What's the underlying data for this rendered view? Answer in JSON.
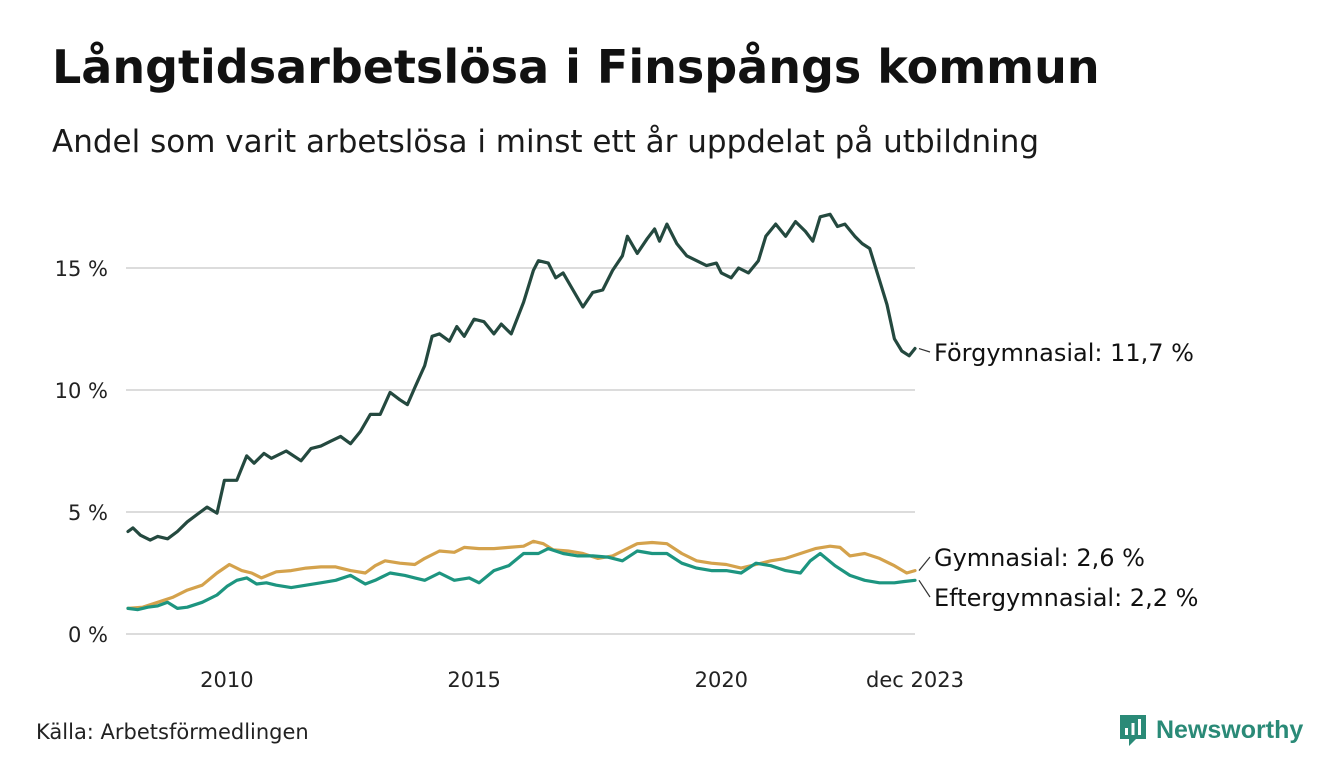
{
  "chart_data": {
    "type": "line",
    "title": "Långtidsarbetslösa i Finspångs kommun",
    "subtitle": "Andel som varit arbetslösa i minst ett år uppdelat på utbildning",
    "xlabel": "",
    "ylabel": "",
    "ylim": [
      0,
      17.5
    ],
    "y_ticks": [
      0,
      5,
      10,
      15
    ],
    "y_tick_labels": [
      "0 %",
      "5 %",
      "10 %",
      "15 %"
    ],
    "x_ticks": [
      2010,
      2015,
      2020,
      2023.917
    ],
    "x_tick_labels": [
      "2010",
      "2015",
      "2020",
      "dec 2023"
    ],
    "xlim": [
      2008.0,
      2023.917
    ],
    "grid": true,
    "colors": {
      "forgymnasial": "#24493f",
      "gymnasial": "#d4a24c",
      "eftergymnasial": "#1d9580",
      "grid": "#dcdcdc"
    },
    "series": [
      {
        "key": "forgymnasial",
        "name": "Förgymnasial",
        "label": "Förgymnasial: 11,7 %",
        "points": [
          [
            2008.0,
            4.2
          ],
          [
            2008.1,
            4.35
          ],
          [
            2008.25,
            4.05
          ],
          [
            2008.45,
            3.85
          ],
          [
            2008.6,
            4.0
          ],
          [
            2008.8,
            3.9
          ],
          [
            2009.0,
            4.2
          ],
          [
            2009.2,
            4.6
          ],
          [
            2009.4,
            4.9
          ],
          [
            2009.6,
            5.2
          ],
          [
            2009.8,
            4.95
          ],
          [
            2009.95,
            6.3
          ],
          [
            2010.2,
            6.3
          ],
          [
            2010.4,
            7.3
          ],
          [
            2010.55,
            7.0
          ],
          [
            2010.75,
            7.4
          ],
          [
            2010.9,
            7.2
          ],
          [
            2011.2,
            7.5
          ],
          [
            2011.5,
            7.1
          ],
          [
            2011.7,
            7.6
          ],
          [
            2011.9,
            7.7
          ],
          [
            2012.1,
            7.9
          ],
          [
            2012.3,
            8.1
          ],
          [
            2012.5,
            7.8
          ],
          [
            2012.7,
            8.3
          ],
          [
            2012.9,
            9.0
          ],
          [
            2013.1,
            9.0
          ],
          [
            2013.3,
            9.9
          ],
          [
            2013.5,
            9.6
          ],
          [
            2013.65,
            9.4
          ],
          [
            2013.8,
            10.1
          ],
          [
            2014.0,
            11.0
          ],
          [
            2014.15,
            12.2
          ],
          [
            2014.3,
            12.3
          ],
          [
            2014.5,
            12.0
          ],
          [
            2014.65,
            12.6
          ],
          [
            2014.8,
            12.2
          ],
          [
            2015.0,
            12.9
          ],
          [
            2015.2,
            12.8
          ],
          [
            2015.4,
            12.3
          ],
          [
            2015.55,
            12.7
          ],
          [
            2015.75,
            12.3
          ],
          [
            2016.0,
            13.6
          ],
          [
            2016.2,
            14.9
          ],
          [
            2016.3,
            15.3
          ],
          [
            2016.5,
            15.2
          ],
          [
            2016.65,
            14.6
          ],
          [
            2016.8,
            14.8
          ],
          [
            2017.0,
            14.1
          ],
          [
            2017.2,
            13.4
          ],
          [
            2017.4,
            14.0
          ],
          [
            2017.6,
            14.1
          ],
          [
            2017.8,
            14.9
          ],
          [
            2018.0,
            15.5
          ],
          [
            2018.1,
            16.3
          ],
          [
            2018.3,
            15.6
          ],
          [
            2018.5,
            16.2
          ],
          [
            2018.65,
            16.6
          ],
          [
            2018.75,
            16.1
          ],
          [
            2018.9,
            16.8
          ],
          [
            2019.1,
            16.0
          ],
          [
            2019.3,
            15.5
          ],
          [
            2019.5,
            15.3
          ],
          [
            2019.7,
            15.1
          ],
          [
            2019.9,
            15.2
          ],
          [
            2020.0,
            14.8
          ],
          [
            2020.2,
            14.6
          ],
          [
            2020.35,
            15.0
          ],
          [
            2020.55,
            14.8
          ],
          [
            2020.75,
            15.3
          ],
          [
            2020.9,
            16.3
          ],
          [
            2021.1,
            16.8
          ],
          [
            2021.3,
            16.3
          ],
          [
            2021.5,
            16.9
          ],
          [
            2021.7,
            16.5
          ],
          [
            2021.85,
            16.1
          ],
          [
            2022.0,
            17.1
          ],
          [
            2022.2,
            17.2
          ],
          [
            2022.35,
            16.7
          ],
          [
            2022.5,
            16.8
          ],
          [
            2022.7,
            16.3
          ],
          [
            2022.85,
            16.0
          ],
          [
            2023.0,
            15.8
          ],
          [
            2023.2,
            14.5
          ],
          [
            2023.35,
            13.5
          ],
          [
            2023.5,
            12.1
          ],
          [
            2023.65,
            11.6
          ],
          [
            2023.8,
            11.4
          ],
          [
            2023.917,
            11.7
          ]
        ]
      },
      {
        "key": "gymnasial",
        "name": "Gymnasial",
        "label": "Gymnasial:  2,6 %",
        "points": [
          [
            2008.0,
            1.05
          ],
          [
            2008.3,
            1.1
          ],
          [
            2008.6,
            1.3
          ],
          [
            2008.9,
            1.5
          ],
          [
            2009.2,
            1.8
          ],
          [
            2009.5,
            2.0
          ],
          [
            2009.8,
            2.5
          ],
          [
            2010.05,
            2.85
          ],
          [
            2010.3,
            2.6
          ],
          [
            2010.5,
            2.5
          ],
          [
            2010.7,
            2.3
          ],
          [
            2011.0,
            2.55
          ],
          [
            2011.3,
            2.6
          ],
          [
            2011.6,
            2.7
          ],
          [
            2011.9,
            2.75
          ],
          [
            2012.2,
            2.75
          ],
          [
            2012.5,
            2.6
          ],
          [
            2012.8,
            2.5
          ],
          [
            2013.0,
            2.8
          ],
          [
            2013.2,
            3.0
          ],
          [
            2013.5,
            2.9
          ],
          [
            2013.8,
            2.85
          ],
          [
            2014.0,
            3.1
          ],
          [
            2014.3,
            3.4
          ],
          [
            2014.6,
            3.35
          ],
          [
            2014.8,
            3.55
          ],
          [
            2015.1,
            3.5
          ],
          [
            2015.4,
            3.5
          ],
          [
            2015.7,
            3.55
          ],
          [
            2016.0,
            3.6
          ],
          [
            2016.2,
            3.8
          ],
          [
            2016.4,
            3.7
          ],
          [
            2016.6,
            3.45
          ],
          [
            2016.9,
            3.4
          ],
          [
            2017.2,
            3.3
          ],
          [
            2017.5,
            3.1
          ],
          [
            2017.8,
            3.2
          ],
          [
            2018.0,
            3.4
          ],
          [
            2018.3,
            3.7
          ],
          [
            2018.6,
            3.75
          ],
          [
            2018.9,
            3.7
          ],
          [
            2019.2,
            3.3
          ],
          [
            2019.5,
            3.0
          ],
          [
            2019.8,
            2.9
          ],
          [
            2020.1,
            2.85
          ],
          [
            2020.4,
            2.7
          ],
          [
            2020.7,
            2.85
          ],
          [
            2021.0,
            3.0
          ],
          [
            2021.3,
            3.1
          ],
          [
            2021.6,
            3.3
          ],
          [
            2021.9,
            3.5
          ],
          [
            2022.2,
            3.6
          ],
          [
            2022.4,
            3.55
          ],
          [
            2022.6,
            3.2
          ],
          [
            2022.9,
            3.3
          ],
          [
            2023.2,
            3.1
          ],
          [
            2023.5,
            2.8
          ],
          [
            2023.75,
            2.5
          ],
          [
            2023.917,
            2.6
          ]
        ]
      },
      {
        "key": "eftergymnasial",
        "name": "Eftergymnasial",
        "label": "Eftergymnasial:  2,2 %",
        "points": [
          [
            2008.0,
            1.05
          ],
          [
            2008.2,
            1.0
          ],
          [
            2008.4,
            1.1
          ],
          [
            2008.6,
            1.15
          ],
          [
            2008.8,
            1.3
          ],
          [
            2009.0,
            1.05
          ],
          [
            2009.2,
            1.1
          ],
          [
            2009.5,
            1.3
          ],
          [
            2009.8,
            1.6
          ],
          [
            2010.0,
            1.95
          ],
          [
            2010.2,
            2.2
          ],
          [
            2010.4,
            2.3
          ],
          [
            2010.6,
            2.05
          ],
          [
            2010.8,
            2.1
          ],
          [
            2011.0,
            2.0
          ],
          [
            2011.3,
            1.9
          ],
          [
            2011.6,
            2.0
          ],
          [
            2011.9,
            2.1
          ],
          [
            2012.2,
            2.2
          ],
          [
            2012.5,
            2.4
          ],
          [
            2012.8,
            2.05
          ],
          [
            2013.0,
            2.2
          ],
          [
            2013.3,
            2.5
          ],
          [
            2013.6,
            2.4
          ],
          [
            2013.8,
            2.3
          ],
          [
            2014.0,
            2.2
          ],
          [
            2014.3,
            2.5
          ],
          [
            2014.6,
            2.2
          ],
          [
            2014.9,
            2.3
          ],
          [
            2015.1,
            2.1
          ],
          [
            2015.4,
            2.6
          ],
          [
            2015.7,
            2.8
          ],
          [
            2016.0,
            3.3
          ],
          [
            2016.3,
            3.3
          ],
          [
            2016.5,
            3.5
          ],
          [
            2016.8,
            3.3
          ],
          [
            2017.1,
            3.2
          ],
          [
            2017.4,
            3.2
          ],
          [
            2017.7,
            3.15
          ],
          [
            2018.0,
            3.0
          ],
          [
            2018.3,
            3.4
          ],
          [
            2018.6,
            3.3
          ],
          [
            2018.9,
            3.3
          ],
          [
            2019.2,
            2.9
          ],
          [
            2019.5,
            2.7
          ],
          [
            2019.8,
            2.6
          ],
          [
            2020.1,
            2.6
          ],
          [
            2020.4,
            2.5
          ],
          [
            2020.7,
            2.9
          ],
          [
            2021.0,
            2.8
          ],
          [
            2021.3,
            2.6
          ],
          [
            2021.6,
            2.5
          ],
          [
            2021.8,
            3.0
          ],
          [
            2022.0,
            3.3
          ],
          [
            2022.3,
            2.8
          ],
          [
            2022.6,
            2.4
          ],
          [
            2022.9,
            2.2
          ],
          [
            2023.2,
            2.1
          ],
          [
            2023.5,
            2.1
          ],
          [
            2023.7,
            2.15
          ],
          [
            2023.917,
            2.2
          ]
        ]
      }
    ],
    "source": "Källa: Arbetsförmedlingen",
    "brand": "Newsworthy"
  }
}
